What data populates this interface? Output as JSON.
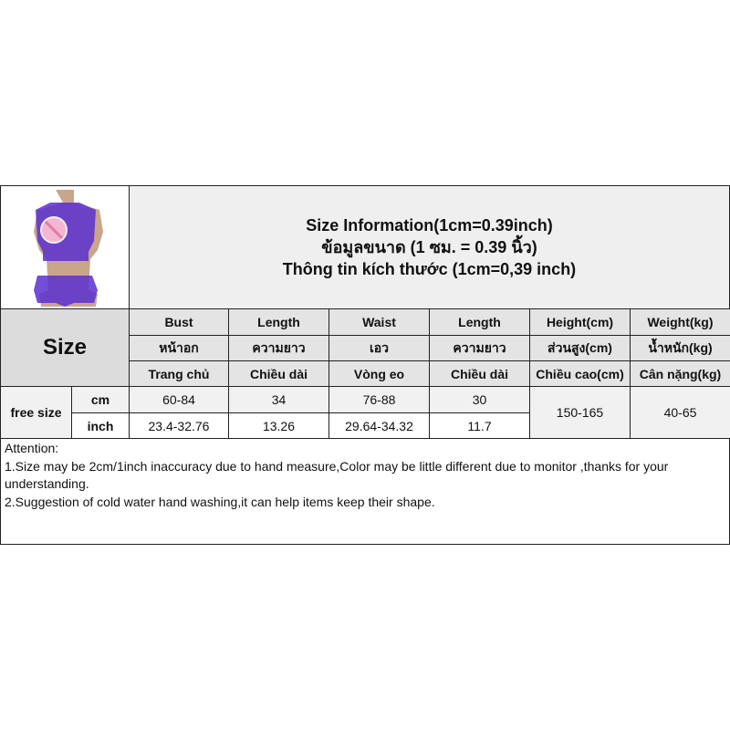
{
  "title": {
    "line1": "Size Information(1cm=0.39inch)",
    "line2": "ข้อมูลขนาด (1 ซม. = 0.39 นิ้ว)",
    "line3": "Thông tin kích thước (1cm=0,39 inch)"
  },
  "size_label": "Size",
  "columns": [
    {
      "en": "Bust",
      "th": "หน้าอก",
      "vi": "Trang chủ",
      "cm": "60-84",
      "inch": "23.4-32.76"
    },
    {
      "en": "Length",
      "th": "ความยาว",
      "vi": "Chiều dài",
      "cm": "34",
      "inch": "13.26"
    },
    {
      "en": "Waist",
      "th": "เอว",
      "vi": "Vòng eo",
      "cm": "76-88",
      "inch": "29.64-34.32"
    },
    {
      "en": "Length",
      "th": "ความยาว",
      "vi": "Chiều dài",
      "cm": "30",
      "inch": "11.7"
    },
    {
      "en": "Height(cm)",
      "th": "ส่วนสูง(cm)",
      "vi": "Chiều cao(cm)",
      "value": "150-165"
    },
    {
      "en": "Weight(kg)",
      "th": "น้ำหนัก(kg)",
      "vi": "Cân nặng(kg)",
      "value": "40-65"
    }
  ],
  "row": {
    "size": "free size",
    "cm": "cm",
    "inch": "inch"
  },
  "attention": {
    "heading": "Attention:",
    "line1": "1.Size may be 2cm/1inch inaccuracy due to hand measure,Color may be little different due to monitor ,thanks for your understanding.",
    "line2": "2.Suggestion of cold water hand washing,it can help items keep their shape."
  },
  "colors": {
    "garment": "#5a2fd0",
    "skin": "#c9a58c",
    "censor": "#f4b6d0"
  }
}
